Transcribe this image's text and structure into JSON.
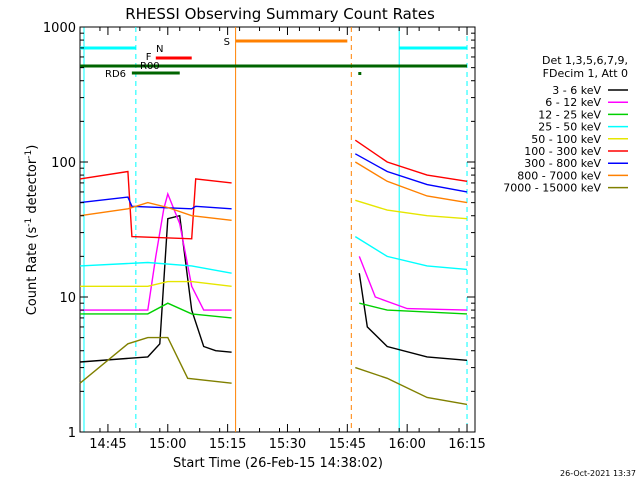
{
  "chart_data": {
    "type": "line",
    "title": "RHESSI Observing Summary Count Rates",
    "xlabel": "Start Time (26-Feb-15 14:38:02)",
    "ylabel_main": "Count Rate (s",
    "ylabel_exp1": "-1",
    "ylabel_mid": " detector",
    "ylabel_exp2": "-1",
    "ylabel_end": ")",
    "yscale": "log",
    "ylim": [
      1,
      1000
    ],
    "xlim_minutes": [
      "14:38",
      "16:17"
    ],
    "x_ticks": [
      "14:45",
      "15:00",
      "15:15",
      "15:30",
      "15:45",
      "16:00",
      "16:15"
    ],
    "y_ticks": [
      {
        "value": 1,
        "label": "1"
      },
      {
        "value": 10,
        "label": "10"
      },
      {
        "value": 100,
        "label": "100"
      },
      {
        "value": 1000,
        "label": "1000"
      }
    ],
    "legend_header": [
      "Det 1,3,5,6,7,9,",
      "FDecim 1, Att 0"
    ],
    "legend_position": "right",
    "series": [
      {
        "name": "3 - 6 keV",
        "color": "#000000",
        "before": [
          {
            "t": "14:38",
            "v": 3.3
          },
          {
            "t": "14:55",
            "v": 3.6
          },
          {
            "t": "14:58",
            "v": 4.5
          },
          {
            "t": "15:00",
            "v": 38
          },
          {
            "t": "15:03",
            "v": 40
          },
          {
            "t": "15:06",
            "v": 8
          },
          {
            "t": "15:09",
            "v": 4.3
          },
          {
            "t": "15:12",
            "v": 4.0
          },
          {
            "t": "15:16",
            "v": 3.9
          }
        ],
        "after": [
          {
            "t": "15:48",
            "v": 15
          },
          {
            "t": "15:50",
            "v": 6
          },
          {
            "t": "15:55",
            "v": 4.3
          },
          {
            "t": "16:05",
            "v": 3.6
          },
          {
            "t": "16:15",
            "v": 3.4
          }
        ]
      },
      {
        "name": "6 - 12 keV",
        "color": "#ff00ff",
        "before": [
          {
            "t": "14:38",
            "v": 8
          },
          {
            "t": "14:55",
            "v": 8
          },
          {
            "t": "14:57",
            "v": 20
          },
          {
            "t": "14:59",
            "v": 45
          },
          {
            "t": "15:00",
            "v": 58
          },
          {
            "t": "15:03",
            "v": 35
          },
          {
            "t": "15:06",
            "v": 12
          },
          {
            "t": "15:09",
            "v": 8
          },
          {
            "t": "15:16",
            "v": 8
          }
        ],
        "after": [
          {
            "t": "15:48",
            "v": 20
          },
          {
            "t": "15:52",
            "v": 10
          },
          {
            "t": "16:00",
            "v": 8.2
          },
          {
            "t": "16:15",
            "v": 8
          }
        ]
      },
      {
        "name": "12 - 25 keV",
        "color": "#00d000",
        "before": [
          {
            "t": "14:38",
            "v": 7.5
          },
          {
            "t": "14:55",
            "v": 7.5
          },
          {
            "t": "15:00",
            "v": 9
          },
          {
            "t": "15:06",
            "v": 7.5
          },
          {
            "t": "15:16",
            "v": 7
          }
        ],
        "after": [
          {
            "t": "15:48",
            "v": 9
          },
          {
            "t": "15:55",
            "v": 8
          },
          {
            "t": "16:15",
            "v": 7.5
          }
        ]
      },
      {
        "name": "25 - 50 keV",
        "color": "#00ffff",
        "before": [
          {
            "t": "14:38",
            "v": 17
          },
          {
            "t": "14:55",
            "v": 18
          },
          {
            "t": "15:06",
            "v": 17
          },
          {
            "t": "15:16",
            "v": 15
          }
        ],
        "after": [
          {
            "t": "15:47",
            "v": 28
          },
          {
            "t": "15:55",
            "v": 20
          },
          {
            "t": "16:05",
            "v": 17
          },
          {
            "t": "16:15",
            "v": 16
          }
        ]
      },
      {
        "name": "50 - 100 keV",
        "color": "#e6e600",
        "before": [
          {
            "t": "14:38",
            "v": 12
          },
          {
            "t": "14:55",
            "v": 12
          },
          {
            "t": "15:00",
            "v": 13
          },
          {
            "t": "15:06",
            "v": 13
          },
          {
            "t": "15:16",
            "v": 12
          }
        ],
        "after": [
          {
            "t": "15:47",
            "v": 52
          },
          {
            "t": "15:55",
            "v": 44
          },
          {
            "t": "16:05",
            "v": 40
          },
          {
            "t": "16:15",
            "v": 38
          }
        ]
      },
      {
        "name": "100 - 300 keV",
        "color": "#ff0000",
        "before": [
          {
            "t": "14:38",
            "v": 75
          },
          {
            "t": "14:50",
            "v": 85
          },
          {
            "t": "14:51",
            "v": 28
          },
          {
            "t": "15:06",
            "v": 27
          },
          {
            "t": "15:07",
            "v": 75
          },
          {
            "t": "15:16",
            "v": 70
          }
        ],
        "after": [
          {
            "t": "15:47",
            "v": 145
          },
          {
            "t": "15:55",
            "v": 100
          },
          {
            "t": "16:05",
            "v": 80
          },
          {
            "t": "16:15",
            "v": 72
          }
        ]
      },
      {
        "name": "300 - 800 keV",
        "color": "#0000ff",
        "before": [
          {
            "t": "14:38",
            "v": 50
          },
          {
            "t": "14:50",
            "v": 55
          },
          {
            "t": "14:51",
            "v": 47
          },
          {
            "t": "15:06",
            "v": 45
          },
          {
            "t": "15:07",
            "v": 47
          },
          {
            "t": "15:16",
            "v": 45
          }
        ],
        "after": [
          {
            "t": "15:47",
            "v": 115
          },
          {
            "t": "15:55",
            "v": 85
          },
          {
            "t": "16:05",
            "v": 68
          },
          {
            "t": "16:15",
            "v": 60
          }
        ]
      },
      {
        "name": "800 - 7000 keV",
        "color": "#ff8000",
        "before": [
          {
            "t": "14:38",
            "v": 40
          },
          {
            "t": "14:50",
            "v": 45
          },
          {
            "t": "14:55",
            "v": 50
          },
          {
            "t": "15:00",
            "v": 46
          },
          {
            "t": "15:06",
            "v": 40
          },
          {
            "t": "15:16",
            "v": 37
          }
        ],
        "after": [
          {
            "t": "15:47",
            "v": 100
          },
          {
            "t": "15:55",
            "v": 72
          },
          {
            "t": "16:05",
            "v": 56
          },
          {
            "t": "16:15",
            "v": 50
          }
        ]
      },
      {
        "name": "7000 - 15000 keV",
        "color": "#808000",
        "before": [
          {
            "t": "14:38",
            "v": 2.3
          },
          {
            "t": "14:50",
            "v": 4.5
          },
          {
            "t": "14:55",
            "v": 5
          },
          {
            "t": "15:00",
            "v": 5
          },
          {
            "t": "15:05",
            "v": 2.5
          },
          {
            "t": "15:16",
            "v": 2.3
          }
        ],
        "after": [
          {
            "t": "15:47",
            "v": 3
          },
          {
            "t": "15:55",
            "v": 2.5
          },
          {
            "t": "16:05",
            "v": 1.8
          },
          {
            "t": "16:15",
            "v": 1.6
          }
        ]
      }
    ],
    "annotations": {
      "S": {
        "label": "S",
        "color": "#ff8000",
        "start": "15:17",
        "end": "15:45"
      },
      "N": {
        "label": "N",
        "color": "#00ffff",
        "segments": [
          [
            "14:38",
            "14:52"
          ],
          [
            "15:58",
            "16:15"
          ]
        ]
      },
      "F": {
        "label": "F",
        "color": "#ff0000",
        "start": "14:57",
        "end": "15:06"
      },
      "R00": {
        "label": "R00",
        "color": "#006400",
        "start": "14:38",
        "end": "16:15"
      },
      "RD6": {
        "label": "RD6",
        "color": "#006400",
        "start": "14:51",
        "end": "15:03"
      }
    },
    "vertical_lines": [
      {
        "t": "14:39",
        "color": "#00ffff",
        "style": "solid"
      },
      {
        "t": "14:52",
        "color": "#00ffff",
        "style": "dashed"
      },
      {
        "t": "15:17",
        "color": "#ff8000",
        "style": "solid"
      },
      {
        "t": "15:46",
        "color": "#ff8000",
        "style": "dashed"
      },
      {
        "t": "15:58",
        "color": "#00ffff",
        "style": "solid"
      },
      {
        "t": "16:15",
        "color": "#00ffff",
        "style": "dashed"
      }
    ],
    "footer_date": "26-Oct-2021 13:37"
  }
}
